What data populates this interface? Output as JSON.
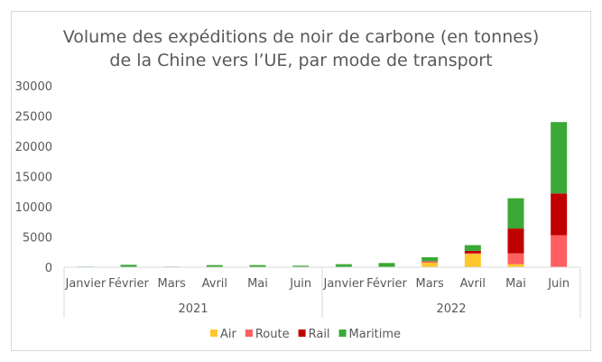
{
  "chart_data": {
    "type": "bar",
    "stacked": true,
    "title_lines": [
      "Volume des expéditions de noir de carbone (en tonnes)",
      "de la Chine vers l’UE, par mode de transport"
    ],
    "groups": [
      {
        "label": "2021",
        "categories": [
          "Janvier",
          "Février",
          "Mars",
          "Avril",
          "Mai",
          "Juin"
        ]
      },
      {
        "label": "2022",
        "categories": [
          "Janvier",
          "Février",
          "Mars",
          "Avril",
          "Mai",
          "Juin"
        ]
      }
    ],
    "series": [
      {
        "name": "Air",
        "color": "#ffc72c",
        "values": [
          0,
          0,
          0,
          0,
          0,
          0,
          0,
          0,
          750,
          2200,
          500,
          0
        ]
      },
      {
        "name": "Route",
        "color": "#ff5f5f",
        "values": [
          0,
          0,
          0,
          0,
          0,
          0,
          0,
          0,
          200,
          100,
          1800,
          5300
        ]
      },
      {
        "name": "Rail",
        "color": "#c00000",
        "values": [
          0,
          0,
          0,
          0,
          0,
          0,
          0,
          0,
          50,
          400,
          4100,
          6900
        ]
      },
      {
        "name": "Maritime",
        "color": "#3aa935",
        "values": [
          100,
          400,
          100,
          350,
          350,
          250,
          500,
          700,
          650,
          950,
          5000,
          11800
        ]
      }
    ],
    "ylim": [
      0,
      30000
    ],
    "yticks": [
      "0",
      "5000",
      "10000",
      "15000",
      "20000",
      "25000",
      "30000"
    ],
    "grid": false,
    "legend": "bottom"
  }
}
